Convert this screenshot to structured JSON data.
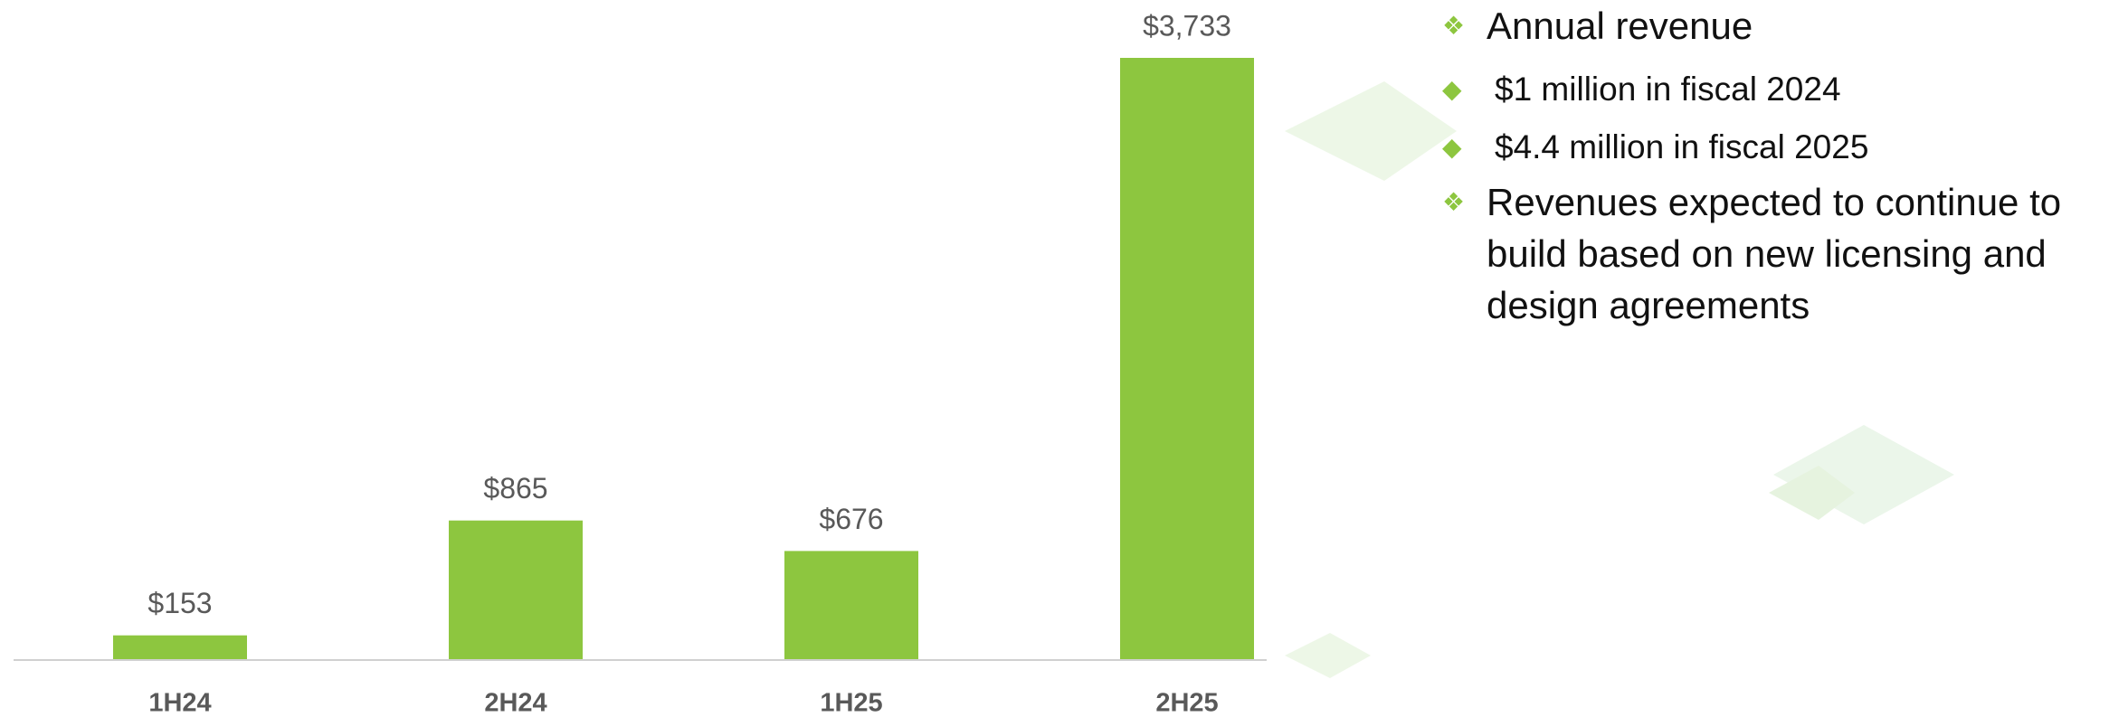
{
  "chart_data": {
    "type": "bar",
    "categories": [
      "1H24",
      "2H24",
      "1H25",
      "2H25"
    ],
    "values": [
      153,
      865,
      676,
      3733
    ],
    "value_labels": [
      "$153",
      "$865",
      "$676",
      "$3,733"
    ],
    "color": "#8dc63f"
  },
  "bullets": [
    {
      "text": "Annual revenue",
      "children": [
        "$1 million in fiscal 2024",
        "$4.4 million in fiscal 2025"
      ]
    },
    {
      "text": "Revenues expected to continue to build based on new licensing and design agreements",
      "children": []
    }
  ]
}
